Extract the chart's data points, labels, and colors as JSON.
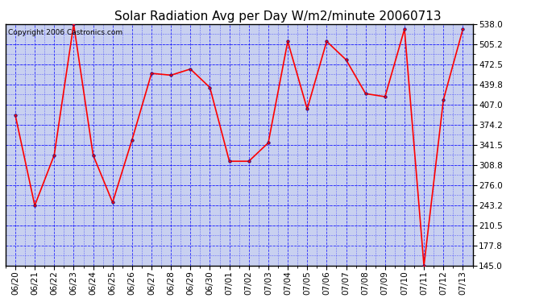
{
  "title": "Solar Radiation Avg per Day W/m2/minute 20060713",
  "copyright": "Copyright 2006 Castronics.com",
  "labels": [
    "06/20",
    "06/21",
    "06/22",
    "06/23",
    "06/24",
    "06/25",
    "06/26",
    "06/27",
    "06/28",
    "06/29",
    "06/30",
    "07/01",
    "07/02",
    "07/03",
    "07/04",
    "07/05",
    "07/06",
    "07/07",
    "07/08",
    "07/09",
    "07/10",
    "07/11",
    "07/12",
    "07/13"
  ],
  "values": [
    390,
    243,
    325,
    538,
    325,
    248,
    350,
    458,
    455,
    465,
    435,
    315,
    315,
    345,
    510,
    400,
    510,
    480,
    425,
    420,
    530,
    145,
    415,
    530
  ],
  "ymin": 145.0,
  "ymax": 538.0,
  "yticks": [
    145.0,
    177.8,
    210.5,
    243.2,
    276.0,
    308.8,
    341.5,
    374.2,
    407.0,
    439.8,
    472.5,
    505.2,
    538.0
  ],
  "line_color": "red",
  "marker": "o",
  "marker_size": 2.5,
  "bg_color": "#c8d0f0",
  "grid_color": "blue",
  "title_fontsize": 11,
  "copyright_fontsize": 6.5,
  "tick_fontsize": 7.5
}
